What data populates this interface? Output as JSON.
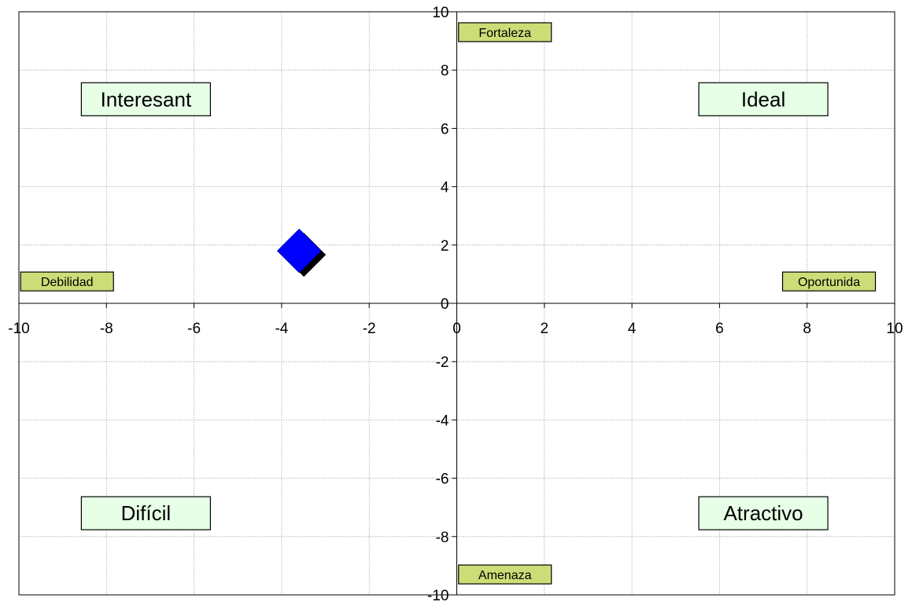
{
  "chart_data": {
    "type": "scatter",
    "title": "",
    "xlabel": "",
    "ylabel": "",
    "xlim": [
      -10,
      10
    ],
    "ylim": [
      -10,
      10
    ],
    "x_ticks": [
      -10,
      -8,
      -6,
      -4,
      -2,
      0,
      2,
      4,
      6,
      8,
      10
    ],
    "y_ticks": [
      -10,
      -8,
      -6,
      -4,
      -2,
      0,
      2,
      4,
      6,
      8,
      10
    ],
    "grid": true,
    "legend": "none",
    "series": [
      {
        "points": [
          {
            "x": -3.6,
            "y": 1.8
          }
        ],
        "marker": "diamond",
        "color": "#0000ff"
      }
    ],
    "quadrant_labels": [
      {
        "text": "Interesant",
        "x": -7.1,
        "y": 7.0
      },
      {
        "text": "Ideal",
        "x": 7.0,
        "y": 7.0
      },
      {
        "text": "Difícil",
        "x": -7.1,
        "y": -7.2
      },
      {
        "text": "Atractivo",
        "x": 7.0,
        "y": -7.2
      }
    ],
    "axis_labels": [
      {
        "text": "Fortaleza",
        "x": 1.1,
        "y": 9.3
      },
      {
        "text": "Amenaza",
        "x": 1.1,
        "y": -9.3
      },
      {
        "text": "Debilidad",
        "x": -8.9,
        "y": 0.75
      },
      {
        "text": "Oportunida",
        "x": 8.5,
        "y": 0.75
      }
    ],
    "colors": {
      "quadrant_box": "#e6ffe6",
      "axis_box": "#ccdd77",
      "marker": "#0000ff",
      "marker_shadow": "#000000",
      "grid": "#a6a6a6",
      "axis": "#000000"
    }
  }
}
